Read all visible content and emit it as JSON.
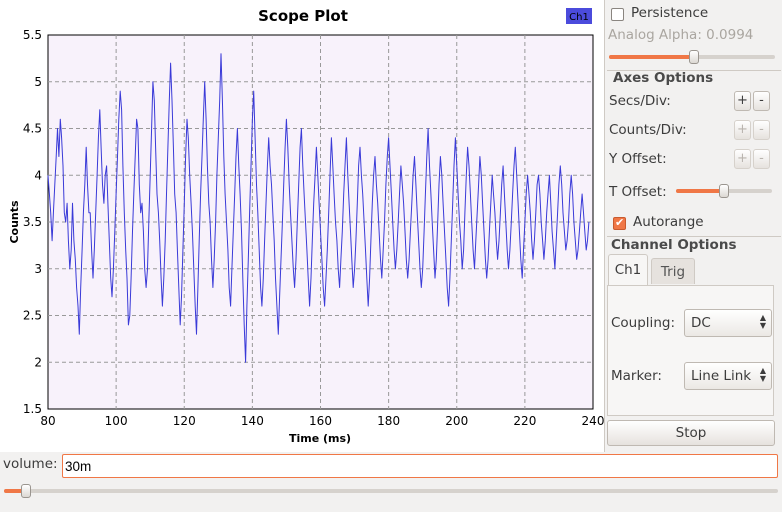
{
  "plot": {
    "title": "Scope Plot",
    "legend_label": "Ch1",
    "legend_color": "#4b4bdc",
    "line_color": "#3a3ad8",
    "bg_color": "#f8f2fb"
  },
  "chart_data": {
    "type": "line",
    "title": "Scope Plot",
    "xlabel": "Time (ms)",
    "ylabel": "Counts",
    "xlim": [
      80,
      240
    ],
    "ylim": [
      1.5,
      5.5
    ],
    "x_ticks": [
      "80",
      "100",
      "120",
      "140",
      "160",
      "180",
      "200",
      "220",
      "240"
    ],
    "y_ticks": [
      "1.5",
      "2",
      "2.5",
      "3",
      "3.5",
      "4",
      "4.5",
      "5",
      "5.5"
    ],
    "grid": true,
    "legend": "top-right",
    "series": [
      {
        "name": "Ch1",
        "color": "#3a3ad8",
        "x_start": 80,
        "x_step": 0.4,
        "values": [
          4.0,
          3.8,
          3.6,
          3.3,
          3.6,
          3.9,
          4.2,
          4.5,
          4.2,
          4.6,
          4.4,
          4.1,
          3.6,
          3.5,
          3.7,
          3.3,
          3.0,
          3.2,
          3.7,
          3.3,
          3.1,
          2.8,
          2.6,
          2.3,
          2.8,
          3.2,
          3.6,
          3.9,
          4.3,
          3.9,
          3.6,
          3.6,
          3.2,
          2.9,
          3.2,
          3.6,
          4.0,
          4.4,
          4.7,
          4.3,
          3.9,
          3.7,
          4.0,
          4.1,
          3.7,
          3.3,
          2.9,
          2.7,
          3.0,
          3.4,
          3.8,
          4.2,
          4.6,
          4.9,
          4.7,
          4.1,
          3.6,
          3.2,
          2.9,
          2.4,
          2.5,
          2.9,
          3.4,
          3.8,
          4.2,
          4.6,
          4.5,
          3.9,
          3.6,
          3.7,
          3.4,
          3.0,
          2.8,
          3.0,
          3.5,
          4.0,
          4.5,
          5.0,
          4.8,
          4.3,
          3.8,
          3.6,
          3.3,
          2.9,
          2.6,
          2.9,
          3.3,
          3.8,
          4.3,
          4.8,
          5.2,
          4.8,
          4.3,
          3.8,
          3.6,
          3.2,
          2.8,
          2.4,
          2.7,
          3.2,
          3.7,
          4.2,
          4.6,
          4.4,
          4.0,
          3.7,
          3.4,
          3.0,
          2.6,
          2.3,
          2.8,
          3.3,
          3.8,
          4.2,
          4.6,
          5.0,
          4.6,
          4.1,
          3.7,
          3.5,
          3.1,
          2.8,
          3.1,
          3.5,
          4.0,
          4.4,
          4.8,
          5.3,
          4.8,
          4.2,
          3.8,
          3.5,
          3.2,
          2.8,
          2.6,
          3.0,
          3.4,
          3.8,
          4.2,
          4.5,
          4.1,
          3.8,
          3.4,
          2.9,
          2.4,
          2.0,
          2.6,
          3.1,
          3.6,
          4.1,
          4.6,
          4.9,
          4.4,
          3.9,
          3.6,
          3.2,
          2.8,
          2.6,
          2.9,
          3.3,
          3.7,
          4.1,
          4.4,
          4.1,
          3.9,
          3.6,
          3.3,
          2.9,
          2.6,
          2.3,
          2.7,
          3.1,
          3.5,
          3.9,
          4.3,
          4.6,
          4.3,
          3.9,
          3.6,
          3.3,
          3.0,
          2.8,
          3.1,
          3.5,
          3.9,
          4.3,
          4.5,
          4.1,
          3.8,
          3.5,
          3.2,
          2.9,
          2.6,
          2.9,
          3.3,
          3.7,
          4.0,
          4.3,
          4.0,
          3.7,
          3.4,
          3.1,
          2.8,
          2.6,
          2.9,
          3.2,
          3.6,
          4.0,
          4.4,
          4.1,
          3.8,
          3.5,
          3.3,
          3.0,
          2.8,
          3.1,
          3.4,
          3.8,
          4.1,
          4.4,
          4.0,
          3.7,
          3.4,
          3.1,
          2.8,
          3.0,
          3.3,
          3.7,
          4.1,
          4.3,
          4.0,
          3.8,
          3.5,
          3.2,
          2.9,
          2.6,
          2.9,
          3.3,
          3.7,
          4.0,
          4.2,
          3.9,
          3.7,
          3.4,
          3.1,
          2.9,
          3.2,
          3.5,
          3.9,
          4.2,
          4.4,
          4.1,
          3.8,
          3.5,
          3.2,
          3.0,
          3.2,
          3.5,
          3.8,
          4.1,
          3.9,
          3.7,
          3.4,
          3.1,
          2.9,
          3.1,
          3.4,
          3.7,
          4.0,
          4.2,
          3.9,
          3.6,
          3.3,
          3.0,
          2.8,
          3.0,
          3.4,
          3.8,
          4.2,
          4.5,
          4.1,
          3.8,
          3.5,
          3.2,
          2.9,
          3.1,
          3.5,
          3.9,
          4.2,
          4.0,
          3.7,
          3.4,
          3.1,
          2.8,
          2.6,
          2.9,
          3.3,
          3.7,
          4.1,
          4.4,
          4.1,
          3.8,
          3.5,
          3.3,
          3.0,
          3.2,
          3.6,
          4.0,
          4.3,
          4.1,
          3.8,
          3.5,
          3.2,
          3.0,
          3.3,
          3.6,
          3.9,
          4.2,
          4.0,
          3.7,
          3.4,
          3.1,
          2.9,
          3.1,
          3.4,
          3.7,
          4.0,
          3.8,
          3.6,
          3.3,
          3.1,
          3.3,
          3.6,
          3.9,
          4.1,
          3.8,
          3.5,
          3.2,
          3.0,
          3.2,
          3.5,
          3.8,
          4.1,
          4.3,
          4.0,
          3.7,
          3.4,
          3.1,
          2.9,
          3.2,
          3.5,
          3.8,
          4.0,
          3.8,
          3.6,
          3.3,
          3.1,
          3.3,
          3.6,
          3.9,
          4.0,
          3.8,
          3.5,
          3.3,
          3.1,
          3.3,
          3.6,
          3.8,
          4.0,
          3.7,
          3.4,
          3.2,
          3.0,
          3.3,
          3.6,
          3.9,
          4.1,
          3.9,
          3.6,
          3.4,
          3.2,
          3.3,
          3.5,
          3.8,
          4.0,
          3.8,
          3.5,
          3.3,
          3.1,
          3.2,
          3.4,
          3.6,
          3.8,
          3.6,
          3.4,
          3.2,
          3.3,
          3.5
        ]
      }
    ]
  },
  "side": {
    "persistence_label": "Persistence",
    "analog_alpha_label": "Analog Alpha: 0.0994",
    "analog_alpha_value": 0.5,
    "axes_options_title": "Axes Options",
    "secs_div_label": "Secs/Div:",
    "counts_div_label": "Counts/Div:",
    "y_offset_label": "Y Offset:",
    "t_offset_label": "T Offset:",
    "t_offset_value": 0.55,
    "plus": "+",
    "minus": "-",
    "autorange_label": "Autorange",
    "channel_options_title": "Channel Options",
    "tabs": [
      "Ch1",
      "Trig"
    ],
    "coupling_label": "Coupling:",
    "coupling_value": "DC",
    "marker_label": "Marker:",
    "marker_value": "Line Link",
    "stop_label": "Stop"
  },
  "bottom": {
    "volume_label": "volume:",
    "volume_value": "30m",
    "volume_slider_value": 0.03
  }
}
